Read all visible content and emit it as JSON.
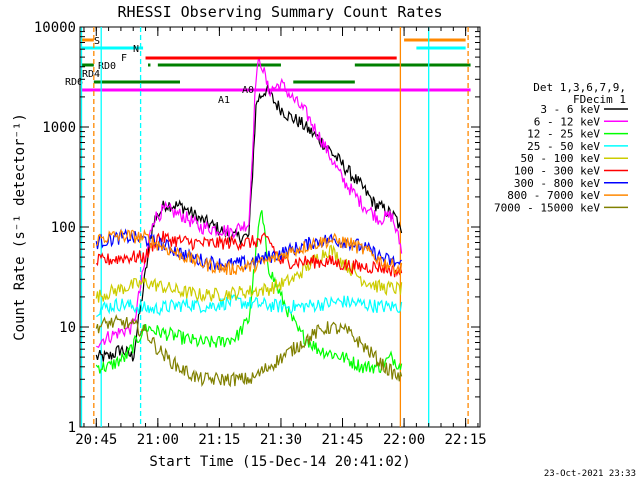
{
  "chart_data": {
    "type": "line",
    "title": "RHESSI Observing Summary Count Rates",
    "xlabel": "Start Time (15-Dec-14 20:41:02)",
    "ylabel": "Count Rate (s⁻¹ detector⁻¹)",
    "yscale": "log",
    "ylim": [
      1,
      10000
    ],
    "xlim": [
      "20:41:02",
      "22:18:30"
    ],
    "x_ticks": [
      "20:45",
      "21:00",
      "21:15",
      "21:30",
      "21:45",
      "22:00",
      "22:15"
    ],
    "y_ticks": [
      "1",
      "10",
      "100",
      "1000",
      "10000"
    ],
    "stamp": "23-Oct-2021 23:33",
    "legend": {
      "position": "right",
      "header": [
        "Det 1,3,6,7,9,",
        "FDecim 1"
      ],
      "entries": [
        {
          "label": "3 - 6 keV",
          "color": "#000000"
        },
        {
          "label": "6 - 12 keV",
          "color": "#ff00ff"
        },
        {
          "label": "12 - 25 keV",
          "color": "#00ff00"
        },
        {
          "label": "25 - 50 keV",
          "color": "#00ffff"
        },
        {
          "label": "50 - 100 keV",
          "color": "#cccc00"
        },
        {
          "label": "100 - 300 keV",
          "color": "#ff0000"
        },
        {
          "label": "300 - 800 keV",
          "color": "#0000ff"
        },
        {
          "label": "800 - 7000 keV",
          "color": "#ff8800"
        },
        {
          "label": "7000 - 15000 keV",
          "color": "#808000"
        }
      ]
    },
    "series": [
      {
        "name": "3 - 6 keV",
        "color": "#000000",
        "points": [
          [
            20.75,
            5
          ],
          [
            20.8,
            5
          ],
          [
            20.85,
            6
          ],
          [
            20.9,
            5
          ],
          [
            20.98,
            110
          ],
          [
            21.03,
            170
          ],
          [
            21.1,
            160
          ],
          [
            21.17,
            120
          ],
          [
            21.25,
            95
          ],
          [
            21.3,
            80
          ],
          [
            21.37,
            80
          ],
          [
            21.4,
            1800
          ],
          [
            21.44,
            2400
          ],
          [
            21.48,
            1700
          ],
          [
            21.53,
            1300
          ],
          [
            21.58,
            1100
          ],
          [
            21.67,
            700
          ],
          [
            21.75,
            420
          ],
          [
            21.83,
            250
          ],
          [
            21.88,
            170
          ],
          [
            21.92,
            150
          ],
          [
            21.97,
            120
          ],
          [
            21.99,
            80
          ]
        ]
      },
      {
        "name": "6 - 12 keV",
        "color": "#ff00ff",
        "points": [
          [
            20.75,
            7
          ],
          [
            20.8,
            8
          ],
          [
            20.85,
            9
          ],
          [
            20.9,
            10
          ],
          [
            20.98,
            120
          ],
          [
            21.03,
            150
          ],
          [
            21.1,
            130
          ],
          [
            21.17,
            100
          ],
          [
            21.25,
            95
          ],
          [
            21.3,
            90
          ],
          [
            21.37,
            110
          ],
          [
            21.4,
            3800
          ],
          [
            21.42,
            4500
          ],
          [
            21.45,
            2300
          ],
          [
            21.5,
            2700
          ],
          [
            21.55,
            1900
          ],
          [
            21.6,
            1400
          ],
          [
            21.67,
            700
          ],
          [
            21.75,
            300
          ],
          [
            21.83,
            170
          ],
          [
            21.9,
            120
          ],
          [
            21.95,
            130
          ],
          [
            21.99,
            60
          ]
        ]
      },
      {
        "name": "12 - 25 keV",
        "color": "#00ff00",
        "points": [
          [
            20.75,
            4
          ],
          [
            20.8,
            4
          ],
          [
            20.87,
            5
          ],
          [
            20.95,
            10
          ],
          [
            21.0,
            9
          ],
          [
            21.08,
            8
          ],
          [
            21.17,
            7
          ],
          [
            21.25,
            7
          ],
          [
            21.32,
            8
          ],
          [
            21.37,
            12
          ],
          [
            21.4,
            60
          ],
          [
            21.42,
            150
          ],
          [
            21.45,
            40
          ],
          [
            21.5,
            20
          ],
          [
            21.57,
            9
          ],
          [
            21.65,
            6
          ],
          [
            21.75,
            5
          ],
          [
            21.83,
            4
          ],
          [
            21.9,
            4
          ],
          [
            21.95,
            5
          ],
          [
            21.99,
            4
          ]
        ]
      },
      {
        "name": "25 - 50 keV",
        "color": "#00ffff",
        "points": [
          [
            20.75,
            15
          ],
          [
            20.8,
            16
          ],
          [
            20.85,
            17
          ],
          [
            20.9,
            16
          ],
          [
            20.98,
            15
          ],
          [
            21.05,
            16
          ],
          [
            21.13,
            17
          ],
          [
            21.2,
            16
          ],
          [
            21.3,
            18
          ],
          [
            21.4,
            17
          ],
          [
            21.5,
            16
          ],
          [
            21.58,
            16
          ],
          [
            21.67,
            17
          ],
          [
            21.75,
            18
          ],
          [
            21.83,
            17
          ],
          [
            21.9,
            16
          ],
          [
            21.99,
            16
          ]
        ]
      },
      {
        "name": "50 - 100 keV",
        "color": "#cccc00",
        "points": [
          [
            20.75,
            20
          ],
          [
            20.8,
            22
          ],
          [
            20.87,
            25
          ],
          [
            20.95,
            28
          ],
          [
            21.0,
            26
          ],
          [
            21.08,
            23
          ],
          [
            21.17,
            21
          ],
          [
            21.25,
            21
          ],
          [
            21.32,
            22
          ],
          [
            21.4,
            23
          ],
          [
            21.45,
            24
          ],
          [
            21.55,
            30
          ],
          [
            21.65,
            50
          ],
          [
            21.7,
            60
          ],
          [
            21.75,
            45
          ],
          [
            21.83,
            30
          ],
          [
            21.9,
            25
          ],
          [
            21.99,
            24
          ]
        ]
      },
      {
        "name": "100 - 300 keV",
        "color": "#ff0000",
        "points": [
          [
            20.75,
            45
          ],
          [
            20.8,
            47
          ],
          [
            20.87,
            50
          ],
          [
            20.95,
            50
          ],
          [
            21.0,
            80
          ],
          [
            21.05,
            75
          ],
          [
            21.13,
            70
          ],
          [
            21.2,
            68
          ],
          [
            21.3,
            70
          ],
          [
            21.37,
            70
          ],
          [
            21.45,
            75
          ],
          [
            21.5,
            45
          ],
          [
            21.6,
            45
          ],
          [
            21.7,
            45
          ],
          [
            21.8,
            40
          ],
          [
            21.9,
            40
          ],
          [
            21.99,
            35
          ]
        ]
      },
      {
        "name": "300 - 800 keV",
        "color": "#0000ff",
        "points": [
          [
            20.75,
            70
          ],
          [
            20.8,
            75
          ],
          [
            20.87,
            80
          ],
          [
            20.95,
            75
          ],
          [
            21.03,
            65
          ],
          [
            21.13,
            50
          ],
          [
            21.2,
            45
          ],
          [
            21.28,
            42
          ],
          [
            21.37,
            44
          ],
          [
            21.45,
            50
          ],
          [
            21.55,
            60
          ],
          [
            21.63,
            70
          ],
          [
            21.7,
            75
          ],
          [
            21.77,
            72
          ],
          [
            21.85,
            60
          ],
          [
            21.92,
            48
          ],
          [
            21.99,
            42
          ]
        ]
      },
      {
        "name": "800 - 7000 keV",
        "color": "#ff8800",
        "points": [
          [
            20.75,
            75
          ],
          [
            20.8,
            80
          ],
          [
            20.87,
            82
          ],
          [
            20.95,
            78
          ],
          [
            21.03,
            62
          ],
          [
            21.13,
            48
          ],
          [
            21.2,
            42
          ],
          [
            21.28,
            38
          ],
          [
            21.37,
            40
          ],
          [
            21.45,
            46
          ],
          [
            21.55,
            58
          ],
          [
            21.63,
            68
          ],
          [
            21.7,
            74
          ],
          [
            21.77,
            70
          ],
          [
            21.85,
            57
          ],
          [
            21.92,
            44
          ],
          [
            21.99,
            38
          ]
        ]
      },
      {
        "name": "7000 - 15000 keV",
        "color": "#808000",
        "points": [
          [
            20.75,
            10
          ],
          [
            20.8,
            11
          ],
          [
            20.87,
            11
          ],
          [
            20.95,
            9
          ],
          [
            21.0,
            6
          ],
          [
            21.08,
            4
          ],
          [
            21.17,
            3
          ],
          [
            21.25,
            3
          ],
          [
            21.32,
            3
          ],
          [
            21.38,
            3
          ],
          [
            21.45,
            4
          ],
          [
            21.55,
            6
          ],
          [
            21.65,
            9
          ],
          [
            21.7,
            10
          ],
          [
            21.77,
            9
          ],
          [
            21.85,
            6
          ],
          [
            21.92,
            4
          ],
          [
            21.99,
            3
          ]
        ]
      }
    ],
    "flag_bars": [
      {
        "label": "S",
        "color": "#ff8800",
        "segments": [
          [
            20.69,
            20.74
          ],
          [
            22.0,
            22.25
          ]
        ]
      },
      {
        "label": "N",
        "color": "#00ffff",
        "segments": [
          [
            20.69,
            20.94
          ],
          [
            22.05,
            22.25
          ]
        ]
      },
      {
        "label": "F",
        "color": "#ff0000",
        "segments": [
          [
            20.95,
            21.97
          ]
        ]
      },
      {
        "label": "RD0",
        "color": "#008000",
        "segments": [
          [
            20.69,
            20.74
          ],
          [
            20.96,
            20.97
          ],
          [
            21.0,
            21.5
          ],
          [
            21.8,
            22.27
          ]
        ]
      },
      {
        "label": "RD4",
        "color": "#008000",
        "segments": []
      },
      {
        "label": "RD6",
        "color": "#008000",
        "segments": [
          [
            20.74,
            21.09
          ],
          [
            21.55,
            21.8
          ]
        ]
      },
      {
        "label": "A1",
        "color": "#ff00ff",
        "segments": [
          [
            20.69,
            22.27
          ]
        ]
      },
      {
        "label": "A0",
        "color": "#ff00ff",
        "segments": []
      }
    ],
    "vlines": [
      {
        "x": 20.69,
        "color": "#00ffff",
        "style": "solid"
      },
      {
        "x": 20.74,
        "color": "#ff8800",
        "style": "dash"
      },
      {
        "x": 20.77,
        "color": "#00ffff",
        "style": "solid"
      },
      {
        "x": 20.93,
        "color": "#00ffff",
        "style": "dash"
      },
      {
        "x": 21.985,
        "color": "#ff8800",
        "style": "solid"
      },
      {
        "x": 22.1,
        "color": "#00ffff",
        "style": "solid"
      },
      {
        "x": 22.26,
        "color": "#ff8800",
        "style": "dash"
      }
    ]
  }
}
